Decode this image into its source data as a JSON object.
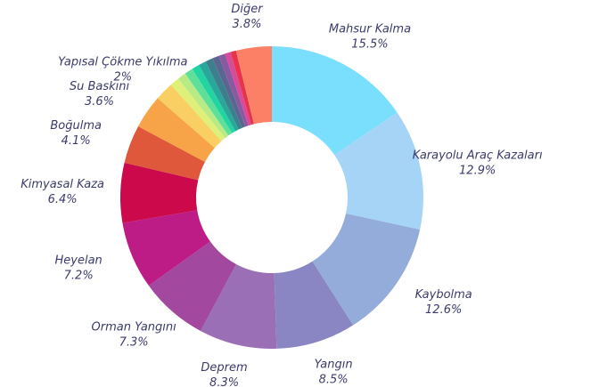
{
  "chart_data": {
    "type": "donut",
    "categories": [
      "Mahsur Kalma",
      "Karayolu Araç Kazaları",
      "Kaybolma",
      "Yangın",
      "Deprem",
      "Orman Yangını",
      "Heyelan",
      "Kimyasal Kaza",
      "Boğulma",
      "Su Baskını",
      "Yapısal Çökme Yıkılma",
      null,
      null,
      null,
      null,
      null,
      null,
      null,
      null,
      null,
      null,
      "Diğer"
    ],
    "values": [
      15.5,
      12.9,
      12.6,
      8.5,
      8.3,
      7.3,
      7.2,
      6.4,
      4.1,
      3.6,
      2,
      1.0,
      0.9,
      0.9,
      0.8,
      0.8,
      0.8,
      0.7,
      0.7,
      0.6,
      0.6,
      3.8
    ],
    "value_labels": [
      "15.5%",
      "12.9%",
      "12.6%",
      "8.5%",
      "8.3%",
      "7.3%",
      "7.2%",
      "6.4%",
      "4.1%",
      "3.6%",
      "2%",
      null,
      null,
      null,
      null,
      null,
      null,
      null,
      null,
      null,
      null,
      "3.8%"
    ],
    "colors": [
      "#7adffc",
      "#a6d4f7",
      "#94acd9",
      "#8a86c4",
      "#9a6fb6",
      "#a2489e",
      "#bd1c86",
      "#cc0a4b",
      "#e0583c",
      "#f7a448",
      "#f9cf63",
      "#dff07a",
      "#b8ea86",
      "#5fe09a",
      "#22d4a2",
      "#2aa79b",
      "#3d7f8d",
      "#5a6590",
      "#8a5aa0",
      "#d94a9a",
      "#e8334d",
      "#fb8066"
    ]
  }
}
